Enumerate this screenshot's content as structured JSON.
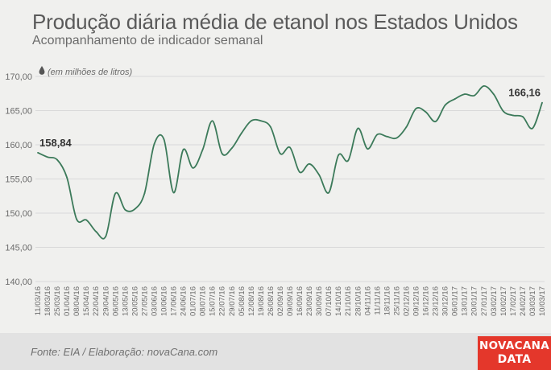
{
  "header": {
    "title": "Produção diária média de etanol nos Estados Unidos",
    "subtitle": "Acompanhamento de indicador semanal"
  },
  "footer": {
    "source": "Fonte:  EIA / Elaboração:  novaCana.com",
    "logo_line1": "NOVACANA",
    "logo_line2": "DATA"
  },
  "colors": {
    "line": "#3c7a5a",
    "grid": "#d9d9d9",
    "background": "#f0f0ee",
    "logo": "#e4372b"
  },
  "chart_data": {
    "type": "line",
    "title": "Produção diária média de etanol nos Estados Unidos",
    "subtitle": "Acompanhamento de indicador semanal",
    "unit_label": "(em milhões de litros)",
    "unit_icon": "drop-icon",
    "ylim": [
      140,
      170
    ],
    "yticks": [
      "140,00",
      "145,00",
      "150,00",
      "155,00",
      "160,00",
      "165,00",
      "170,00"
    ],
    "grid": true,
    "x": [
      "11/03/16",
      "18/03/16",
      "25/03/16",
      "01/04/16",
      "08/04/16",
      "15/04/16",
      "22/04/16",
      "29/04/16",
      "06/05/16",
      "13/05/16",
      "20/05/16",
      "27/05/16",
      "03/06/16",
      "10/06/16",
      "17/06/16",
      "24/06/16",
      "01/07/16",
      "08/07/16",
      "15/07/16",
      "22/07/16",
      "29/07/16",
      "05/08/16",
      "12/08/16",
      "19/08/16",
      "26/08/16",
      "02/09/16",
      "09/09/16",
      "16/09/16",
      "23/09/16",
      "30/09/16",
      "07/10/16",
      "14/10/16",
      "21/10/16",
      "28/10/16",
      "04/11/16",
      "11/11/16",
      "18/11/16",
      "25/11/16",
      "02/12/16",
      "09/12/16",
      "16/12/16",
      "23/12/16",
      "30/12/16",
      "06/01/17",
      "13/01/17",
      "20/01/17",
      "27/01/17",
      "03/02/17",
      "10/02/17",
      "17/02/17",
      "24/02/17",
      "03/03/17",
      "10/03/17"
    ],
    "series": [
      {
        "name": "",
        "values": [
          158.84,
          158.2,
          157.8,
          155.2,
          149.1,
          149.0,
          147.3,
          146.6,
          152.9,
          150.5,
          150.6,
          152.9,
          160.1,
          160.8,
          153.0,
          159.3,
          156.6,
          159.3,
          163.5,
          158.7,
          159.5,
          161.7,
          163.5,
          163.5,
          162.6,
          158.7,
          159.6,
          156.0,
          157.2,
          155.6,
          153.0,
          158.5,
          157.7,
          162.4,
          159.4,
          161.5,
          161.2,
          161.0,
          162.6,
          165.3,
          164.8,
          163.4,
          165.8,
          166.7,
          167.4,
          167.2,
          168.6,
          167.4,
          164.9,
          164.3,
          164.1,
          162.4,
          166.16
        ]
      }
    ],
    "annotations": [
      {
        "index": 0,
        "label": "158,84"
      },
      {
        "index": 52,
        "label": "166,16"
      }
    ]
  }
}
